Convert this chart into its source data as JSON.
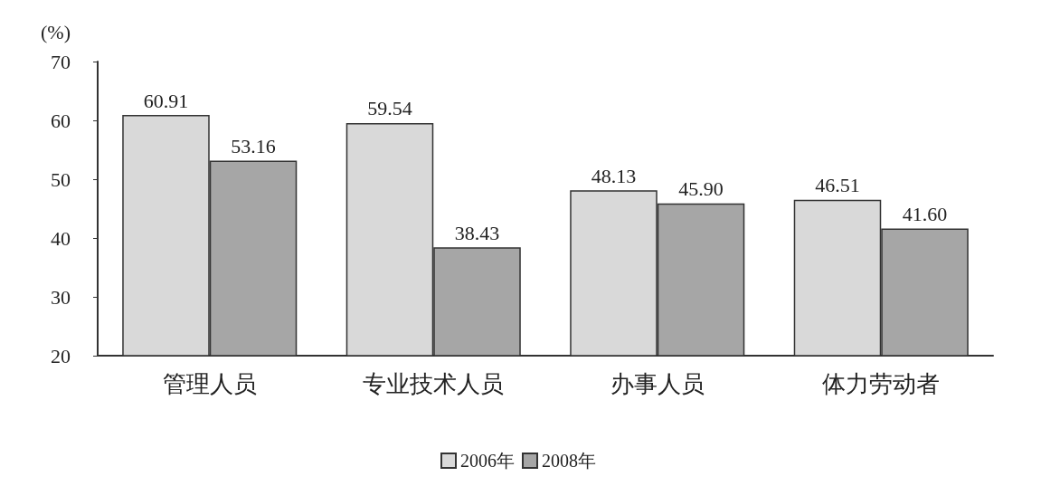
{
  "chart_data": {
    "type": "bar",
    "ylabel": "(%)",
    "categories": [
      "管理人员",
      "专业技术人员",
      "办事人员",
      "体力劳动者"
    ],
    "series": [
      {
        "name": "2006年",
        "color": "#d9d9d9",
        "values": [
          60.91,
          59.54,
          48.13,
          46.51
        ],
        "value_labels": [
          "60.91",
          "59.54",
          "48.13",
          "46.51"
        ]
      },
      {
        "name": "2008年",
        "color": "#a6a6a6",
        "values": [
          53.16,
          38.43,
          45.9,
          41.6
        ],
        "value_labels": [
          "53.16",
          "38.43",
          "45.90",
          "41.60"
        ]
      }
    ],
    "ylim": [
      20,
      70
    ],
    "yticks": [
      20,
      30,
      40,
      50,
      60,
      70
    ],
    "grid": false,
    "legend": "bottom"
  }
}
